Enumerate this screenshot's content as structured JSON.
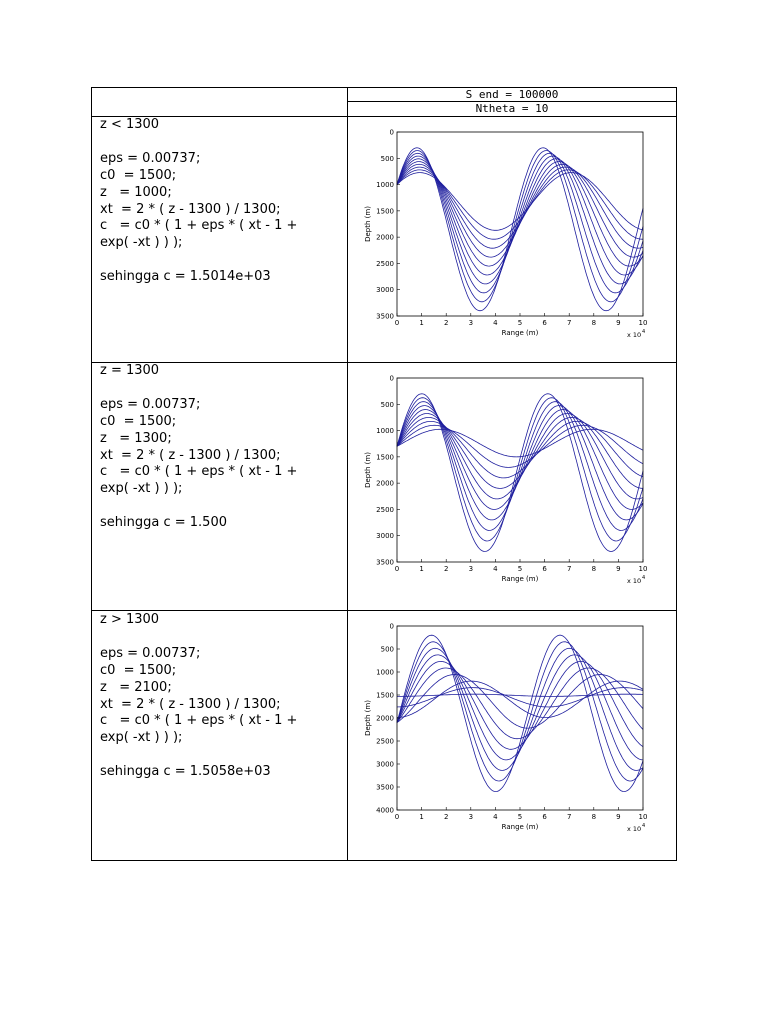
{
  "header": {
    "line1": "S end = 100000",
    "line2": "Ntheta = 10"
  },
  "rows": [
    {
      "lines": [
        "z < 1300",
        "",
        "eps = 0.00737;",
        "c0  = 1500;",
        "z   = 1000;",
        "xt  = 2 * ( z - 1300 ) / 1300;",
        "c   = c0 * ( 1 + eps * ( xt - 1 +",
        "exp( -xt ) ) );",
        "",
        "sehingga c = 1.5014e+03"
      ]
    },
    {
      "lines": [
        "z = 1300",
        "",
        "eps = 0.00737;",
        "c0  = 1500;",
        "z   = 1300;",
        "xt  = 2 * ( z - 1300 ) / 1300;",
        "c   = c0 * ( 1 + eps * ( xt - 1 +",
        "exp( -xt ) ) );",
        "",
        "sehingga c = 1.500"
      ]
    },
    {
      "lines": [
        "z > 1300",
        "",
        "eps = 0.00737;",
        "c0  = 1500;",
        "z   = 2100;",
        "xt  = 2 * ( z - 1300 ) / 1300;",
        "c   = c0 * ( 1 + eps * ( xt - 1 +",
        "exp( -xt ) ) );",
        "",
        "sehingga c = 1.5058e+03"
      ]
    }
  ],
  "chart_data": [
    {
      "type": "line",
      "xlabel": "Range (m)",
      "ylabel": "Depth (m)",
      "xlim": [
        0,
        10
      ],
      "ylim": [
        0,
        3500
      ],
      "x_ticks": [
        "0",
        "1",
        "2",
        "3",
        "4",
        "5",
        "6",
        "7",
        "8",
        "9",
        "10"
      ],
      "y_ticks": [
        "0",
        "500",
        "1000",
        "1500",
        "2000",
        "2500",
        "3000",
        "3500"
      ],
      "x_exponent": "x 10",
      "x_exponent_power": "4",
      "source_depth": 1000,
      "series_count": 10,
      "axis_depth": 1700,
      "shallow_turn": 300,
      "deep_turn_max": 3400,
      "cycle_length": 5.7,
      "line_color": "#1f1f9e"
    },
    {
      "type": "line",
      "xlabel": "Range (m)",
      "ylabel": "Depth (m)",
      "xlim": [
        0,
        10
      ],
      "ylim": [
        0,
        3500
      ],
      "x_ticks": [
        "0",
        "1",
        "2",
        "3",
        "4",
        "5",
        "6",
        "7",
        "8",
        "9",
        "10"
      ],
      "y_ticks": [
        "0",
        "500",
        "1000",
        "1500",
        "2000",
        "2500",
        "3000",
        "3500"
      ],
      "x_exponent": "x 10",
      "x_exponent_power": "4",
      "source_depth": 1300,
      "series_count": 10,
      "axis_depth": 1300,
      "shallow_turn": 300,
      "deep_turn_max": 3300,
      "cycle_length": 5.7,
      "line_color": "#1f1f9e"
    },
    {
      "type": "line",
      "xlabel": "Range (m)",
      "ylabel": "Depth (m)",
      "xlim": [
        0,
        10
      ],
      "ylim": [
        0,
        4000
      ],
      "x_ticks": [
        "0",
        "1",
        "2",
        "3",
        "4",
        "5",
        "6",
        "7",
        "8",
        "9",
        "10"
      ],
      "y_ticks": [
        "0",
        "500",
        "1000",
        "1500",
        "2000",
        "2500",
        "3000",
        "3500",
        "4000"
      ],
      "x_exponent": "x 10",
      "x_exponent_power": "4",
      "source_depth": 2100,
      "series_count": 10,
      "axis_depth": 1300,
      "shallow_turn": 200,
      "deep_turn_max": 3600,
      "cycle_length": 5.8,
      "line_color": "#1f1f9e"
    }
  ]
}
